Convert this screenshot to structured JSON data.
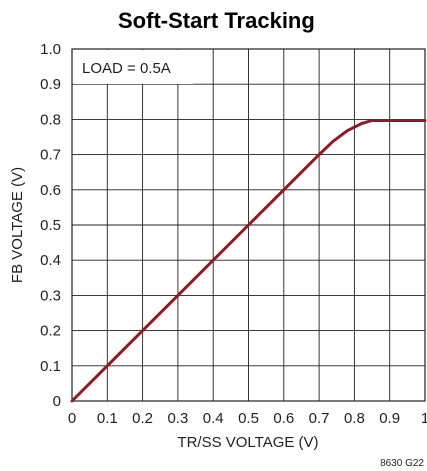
{
  "chart_data": {
    "type": "line",
    "title": "Soft-Start Tracking",
    "xlabel": "TR/SS VOLTAGE (V)",
    "ylabel": "FB VOLTAGE (V)",
    "xlim": [
      0,
      1
    ],
    "ylim": [
      0,
      1
    ],
    "x_ticks": [
      "0",
      "0.1",
      "0.2",
      "0.3",
      "0.4",
      "0.5",
      "0.6",
      "0.7",
      "0.8",
      "0.9",
      "1"
    ],
    "y_ticks": [
      "0",
      "0.1",
      "0.2",
      "0.3",
      "0.4",
      "0.5",
      "0.6",
      "0.7",
      "0.8",
      "0.9",
      "1.0"
    ],
    "grid": true,
    "annotation": "LOAD = 0.5A",
    "figure_code": "8630 G22",
    "line_color": "#8b1a2b",
    "series": [
      {
        "x": [
          0,
          0.1,
          0.2,
          0.3,
          0.4,
          0.5,
          0.6,
          0.7,
          0.74,
          0.78,
          0.82,
          0.85,
          0.88,
          0.92,
          1.0
        ],
        "y": [
          0,
          0.1,
          0.2,
          0.3,
          0.4,
          0.5,
          0.6,
          0.7,
          0.738,
          0.768,
          0.788,
          0.797,
          0.797,
          0.797,
          0.797
        ]
      }
    ]
  }
}
